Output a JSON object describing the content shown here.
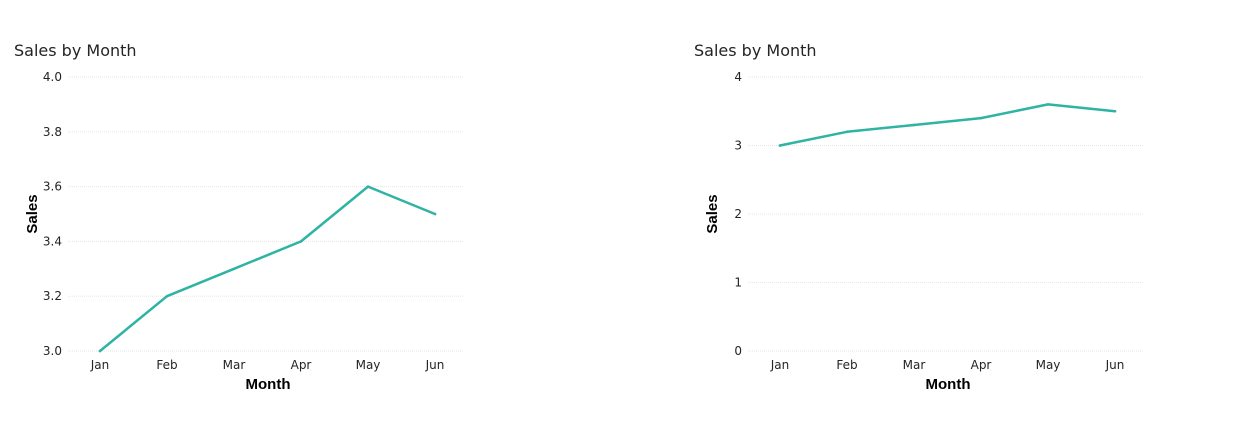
{
  "chart_data": [
    {
      "type": "line",
      "title": "Sales by Month",
      "xlabel": "Month",
      "ylabel": "Sales",
      "categories": [
        "Jan",
        "Feb",
        "Mar",
        "Apr",
        "May",
        "Jun"
      ],
      "series": [
        {
          "values": [
            3.0,
            3.2,
            3.3,
            3.4,
            3.6,
            3.5
          ]
        }
      ],
      "ylim": [
        3.0,
        4.0
      ],
      "yticks": [
        "3.0",
        "3.2",
        "3.4",
        "3.6",
        "3.8",
        "4.0"
      ],
      "grid": true,
      "line_color": "#2fb3a3"
    },
    {
      "type": "line",
      "title": "Sales by Month",
      "xlabel": "Month",
      "ylabel": "Sales",
      "categories": [
        "Jan",
        "Feb",
        "Mar",
        "Apr",
        "May",
        "Jun"
      ],
      "series": [
        {
          "values": [
            3.0,
            3.2,
            3.3,
            3.4,
            3.6,
            3.5
          ]
        }
      ],
      "ylim": [
        0,
        4
      ],
      "yticks": [
        "0",
        "1",
        "2",
        "3",
        "4"
      ],
      "grid": true,
      "line_color": "#2fb3a3"
    }
  ],
  "style": {
    "grid_color": "#e6e6e6",
    "text_color": "#252423"
  }
}
